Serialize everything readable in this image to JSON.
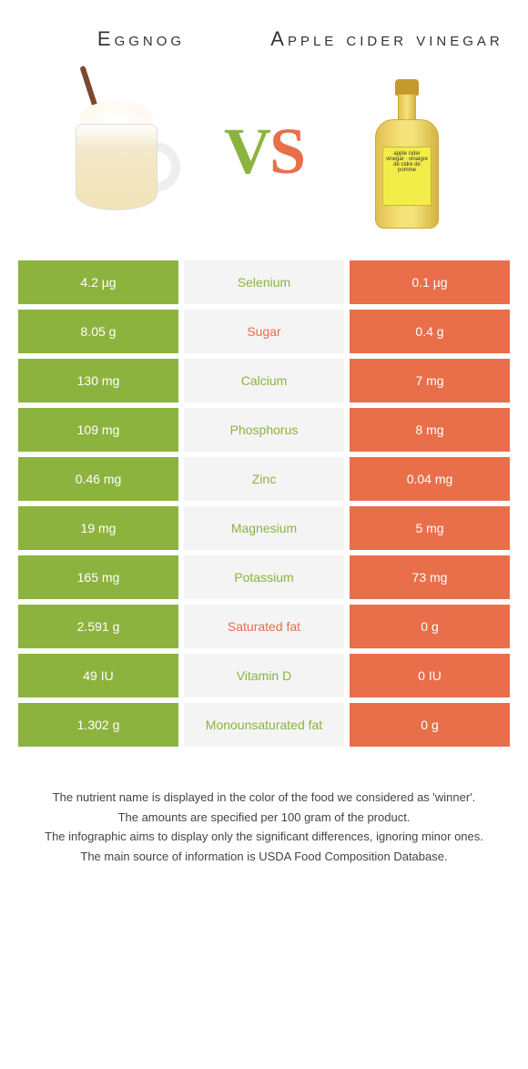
{
  "colors": {
    "left": "#8db33f",
    "right": "#e86f4a",
    "center_bg": "#f4f4f4"
  },
  "header": {
    "left_title": "Eggnog",
    "right_title": "Apple cider vinegar",
    "vs_v_color": "#8db33f",
    "vs_s_color": "#e86f4a",
    "bottle_label_text": "apple cider vinegar · vinaigre de cidre de pomme"
  },
  "rows": [
    {
      "left": "4.2 µg",
      "name": "Selenium",
      "right": "0.1 µg",
      "winner": "left"
    },
    {
      "left": "8.05 g",
      "name": "Sugar",
      "right": "0.4 g",
      "winner": "right"
    },
    {
      "left": "130 mg",
      "name": "Calcium",
      "right": "7 mg",
      "winner": "left"
    },
    {
      "left": "109 mg",
      "name": "Phosphorus",
      "right": "8 mg",
      "winner": "left"
    },
    {
      "left": "0.46 mg",
      "name": "Zinc",
      "right": "0.04 mg",
      "winner": "left"
    },
    {
      "left": "19 mg",
      "name": "Magnesium",
      "right": "5 mg",
      "winner": "left"
    },
    {
      "left": "165 mg",
      "name": "Potassium",
      "right": "73 mg",
      "winner": "left"
    },
    {
      "left": "2.591 g",
      "name": "Saturated fat",
      "right": "0 g",
      "winner": "right"
    },
    {
      "left": "49 IU",
      "name": "Vitamin D",
      "right": "0 IU",
      "winner": "left"
    },
    {
      "left": "1.302 g",
      "name": "Monounsaturated fat",
      "right": "0 g",
      "winner": "left"
    }
  ],
  "footer": {
    "line1": "The nutrient name is displayed in the color of the food we considered as 'winner'.",
    "line2": "The amounts are specified per 100 gram of the product.",
    "line3": "The infographic aims to display only the significant differences, ignoring minor ones.",
    "line4": "The main source of information is USDA Food Composition Database."
  }
}
